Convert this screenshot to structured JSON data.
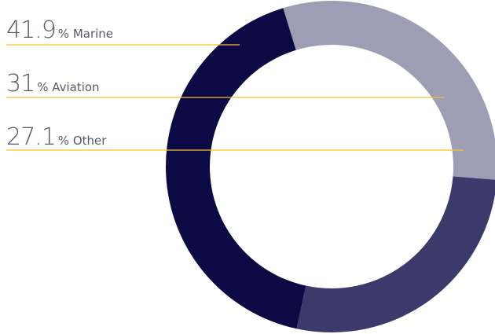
{
  "chart_data": {
    "type": "pie",
    "style": "donut",
    "series": [
      {
        "name": "Marine",
        "value": 41.9,
        "value_label": "41.9",
        "suffix": "% Marine",
        "color": "#0c0a45"
      },
      {
        "name": "Aviation",
        "value": 31,
        "value_label": "31",
        "suffix": "%  Aviation",
        "color": "#9d9db4"
      },
      {
        "name": "Other",
        "value": 27.1,
        "value_label": "27.1",
        "suffix": "% Other",
        "color": "#3b3a6b"
      }
    ],
    "order_clockwise_from_top": [
      "Aviation",
      "Other",
      "Marine"
    ],
    "leader_line_color": "#f2c12e",
    "legend_placement": "left"
  }
}
